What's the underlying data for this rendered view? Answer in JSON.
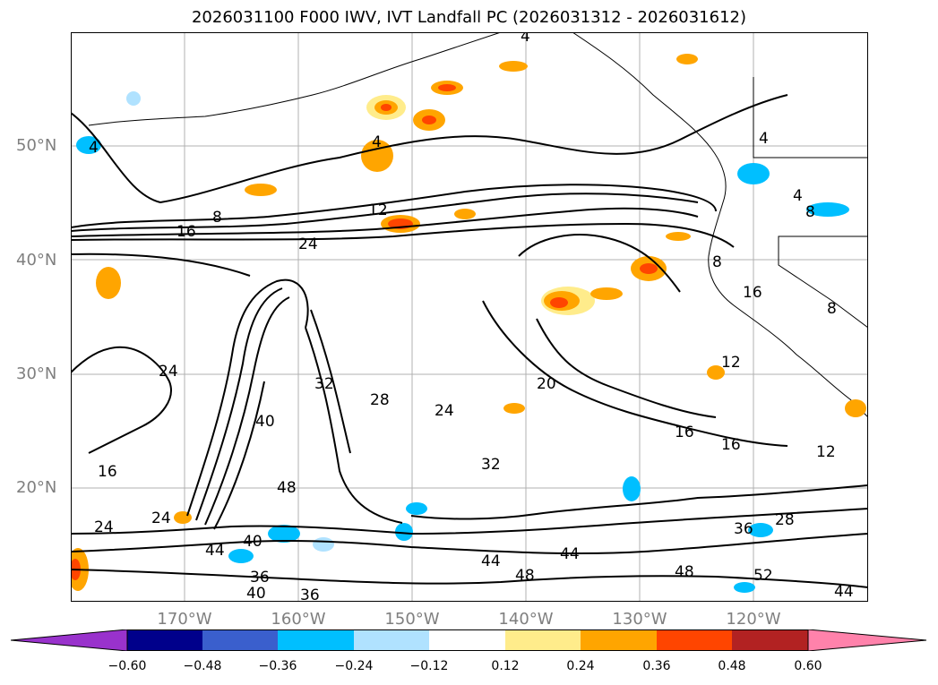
{
  "title": "2026031100 F000 IWV, IVT Landfall PC (2026031312 - 2026031612)",
  "lat_labels": [
    "50°N",
    "40°N",
    "30°N",
    "20°N"
  ],
  "lon_labels": [
    "170°W",
    "160°W",
    "150°W",
    "140°W",
    "130°W",
    "120°W"
  ],
  "contour_labels": [
    "4",
    "4",
    "4",
    "4",
    "4",
    "8",
    "8",
    "8",
    "16",
    "16",
    "12",
    "24",
    "24",
    "24",
    "24",
    "24",
    "40",
    "40",
    "40",
    "36",
    "36",
    "36",
    "32",
    "32",
    "20",
    "16",
    "16",
    "12",
    "12",
    "48",
    "48",
    "48",
    "44",
    "44",
    "44",
    "28",
    "28",
    "52",
    "44",
    "16",
    "8"
  ],
  "colorbar": {
    "ticks": [
      "−0.60",
      "−0.48",
      "−0.36",
      "−0.24",
      "−0.12",
      "0.12",
      "0.24",
      "0.36",
      "0.48",
      "0.60"
    ],
    "colors": [
      "#9932cc",
      "#00008b",
      "#3a5fcd",
      "#00bfff",
      "#b0e2ff",
      "#ffffff",
      "#ffec8b",
      "#ffa500",
      "#ff4500",
      "#b22222",
      "#ff82ab"
    ]
  }
}
